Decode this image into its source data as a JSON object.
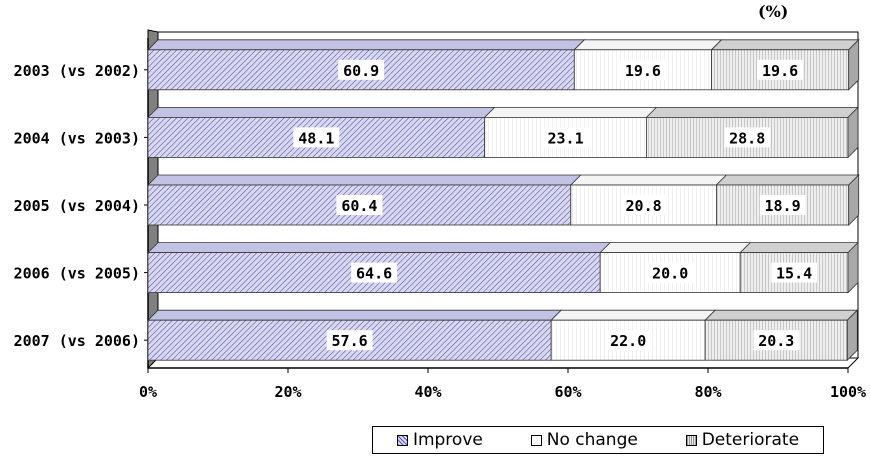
{
  "unit_label": "(%)",
  "chart_data": {
    "type": "bar",
    "orientation": "horizontal",
    "stacked": "percent",
    "categories": [
      "2003 (vs 2002)",
      "2004 (vs 2003)",
      "2005 (vs 2004)",
      "2006 (vs 2005)",
      "2007 (vs 2006)"
    ],
    "series": [
      {
        "name": "Improve",
        "values": [
          60.9,
          48.1,
          60.4,
          64.6,
          57.6
        ],
        "labels": [
          "60.9",
          "48.1",
          "60.4",
          "64.6",
          "57.6"
        ]
      },
      {
        "name": "No change",
        "values": [
          19.6,
          23.1,
          20.8,
          20.0,
          22.0
        ],
        "labels": [
          "19.6",
          "23.1",
          "20.8",
          "20.0",
          "22.0"
        ]
      },
      {
        "name": "Deteriorate",
        "values": [
          19.6,
          28.8,
          18.9,
          15.4,
          20.3
        ],
        "labels": [
          "19.6",
          "28.8",
          "18.9",
          "15.4",
          "20.3"
        ]
      }
    ],
    "x_ticks": [
      "0%",
      "20%",
      "40%",
      "60%",
      "80%",
      "100%"
    ],
    "xlim": [
      0,
      100
    ],
    "grid": false,
    "legend_position": "bottom-right",
    "style": "3d"
  },
  "colors": {
    "improve_line": "#5a5aa6",
    "improve_fill": "#d8d8f0",
    "nochange_fill": "#ffffff",
    "nochange_line": "#c8c8c8",
    "deteriorate_fill": "#e6e6e6",
    "deteriorate_line": "#9a9a9a",
    "wall": "#808080"
  }
}
